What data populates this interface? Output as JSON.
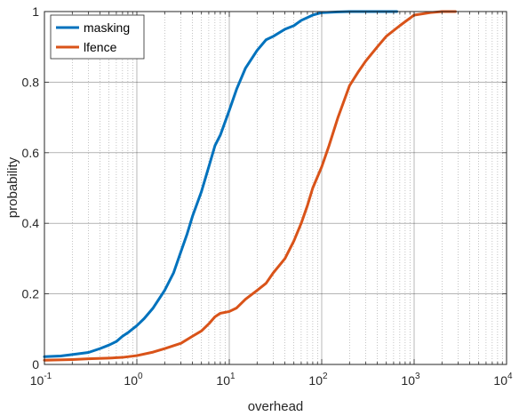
{
  "chart_data": {
    "type": "line",
    "title": "",
    "xlabel": "overhead",
    "ylabel": "probability",
    "xscale": "log",
    "xlim": [
      0.1,
      10000
    ],
    "ylim": [
      0,
      1
    ],
    "xticks": [
      {
        "base": "10",
        "exp": "-1"
      },
      {
        "base": "10",
        "exp": "0"
      },
      {
        "base": "10",
        "exp": "1"
      },
      {
        "base": "10",
        "exp": "2"
      },
      {
        "base": "10",
        "exp": "3"
      },
      {
        "base": "10",
        "exp": "4"
      }
    ],
    "yticks": [
      "0",
      "0.2",
      "0.4",
      "0.6",
      "0.8",
      "1"
    ],
    "grid": "major and minor on x, major on y",
    "legend": {
      "placement": "top-left"
    },
    "series": [
      {
        "name": "masking",
        "color": "#0072BD",
        "points": [
          [
            0.1,
            0.022
          ],
          [
            0.15,
            0.024
          ],
          [
            0.2,
            0.028
          ],
          [
            0.3,
            0.034
          ],
          [
            0.4,
            0.045
          ],
          [
            0.5,
            0.055
          ],
          [
            0.6,
            0.065
          ],
          [
            0.7,
            0.08
          ],
          [
            0.8,
            0.09
          ],
          [
            1.0,
            0.11
          ],
          [
            1.2,
            0.13
          ],
          [
            1.5,
            0.16
          ],
          [
            2.0,
            0.21
          ],
          [
            2.5,
            0.26
          ],
          [
            3.0,
            0.32
          ],
          [
            3.5,
            0.37
          ],
          [
            4.0,
            0.42
          ],
          [
            5.0,
            0.49
          ],
          [
            6.0,
            0.56
          ],
          [
            7.0,
            0.62
          ],
          [
            8.0,
            0.65
          ],
          [
            10.0,
            0.72
          ],
          [
            12.0,
            0.78
          ],
          [
            15.0,
            0.84
          ],
          [
            20.0,
            0.89
          ],
          [
            25.0,
            0.92
          ],
          [
            30.0,
            0.93
          ],
          [
            40.0,
            0.95
          ],
          [
            50.0,
            0.96
          ],
          [
            60.0,
            0.975
          ],
          [
            80.0,
            0.99
          ],
          [
            100.0,
            0.997
          ],
          [
            150.0,
            0.999
          ],
          [
            200.0,
            1.0
          ],
          [
            650.0,
            1.0
          ]
        ]
      },
      {
        "name": "lfence",
        "color": "#D95319",
        "points": [
          [
            0.1,
            0.012
          ],
          [
            0.2,
            0.014
          ],
          [
            0.3,
            0.016
          ],
          [
            0.5,
            0.018
          ],
          [
            0.7,
            0.02
          ],
          [
            1.0,
            0.025
          ],
          [
            1.5,
            0.035
          ],
          [
            2.0,
            0.045
          ],
          [
            3.0,
            0.06
          ],
          [
            4.0,
            0.08
          ],
          [
            5.0,
            0.095
          ],
          [
            6.0,
            0.115
          ],
          [
            7.0,
            0.135
          ],
          [
            8.0,
            0.145
          ],
          [
            10.0,
            0.15
          ],
          [
            12.0,
            0.16
          ],
          [
            15.0,
            0.185
          ],
          [
            20.0,
            0.21
          ],
          [
            25.0,
            0.23
          ],
          [
            30.0,
            0.26
          ],
          [
            40.0,
            0.3
          ],
          [
            50.0,
            0.35
          ],
          [
            60.0,
            0.4
          ],
          [
            70.0,
            0.45
          ],
          [
            80.0,
            0.5
          ],
          [
            100.0,
            0.56
          ],
          [
            120.0,
            0.62
          ],
          [
            150.0,
            0.7
          ],
          [
            200.0,
            0.79
          ],
          [
            250.0,
            0.83
          ],
          [
            300.0,
            0.86
          ],
          [
            400.0,
            0.9
          ],
          [
            500.0,
            0.93
          ],
          [
            700.0,
            0.96
          ],
          [
            1000.0,
            0.99
          ],
          [
            1500.0,
            0.997
          ],
          [
            2000.0,
            1.0
          ],
          [
            2800.0,
            1.0
          ]
        ]
      }
    ]
  }
}
